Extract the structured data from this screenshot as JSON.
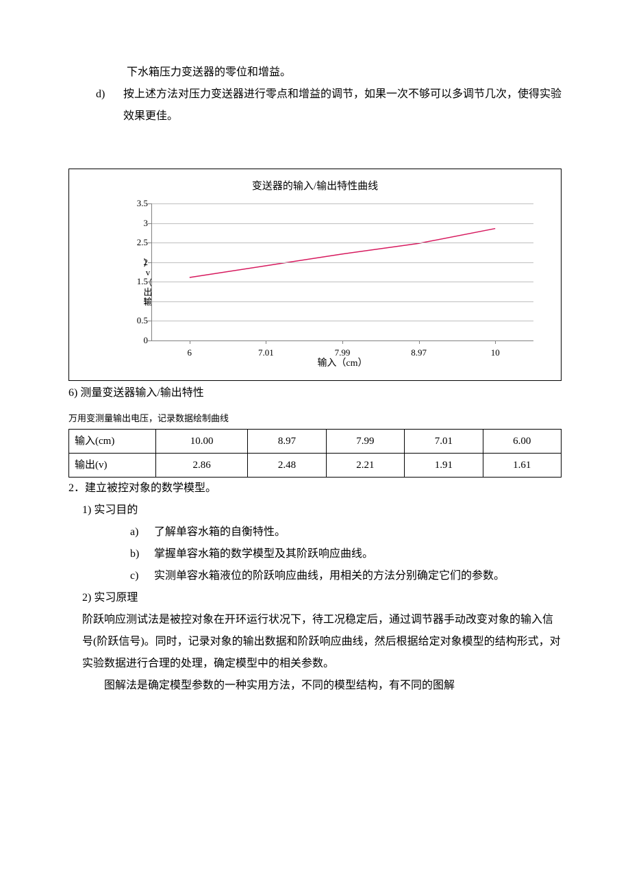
{
  "top": {
    "cont_line": "下水箱压力变送器的零位和增益。",
    "item_d_marker": "d)",
    "item_d_text": "按上述方法对压力变送器进行零点和增益的调节，如果一次不够可以多调节几次，使得实验效果更佳。"
  },
  "chart": {
    "title": "变送器的输入/输出特性曲线",
    "ylabel_chars": [
      "）",
      "v",
      "（",
      "出",
      "输"
    ],
    "xlabel": "输入（cm）",
    "ylim": [
      0,
      3.5
    ],
    "ytick_step": 0.5,
    "yticks": [
      "0",
      "0.5",
      "1",
      "1.5",
      "2",
      "2.5",
      "3",
      "3.5"
    ],
    "xticks": [
      "6",
      "7.01",
      "7.99",
      "8.97",
      "10"
    ],
    "grid_color": "#bfbfbf",
    "axis_color": "#808080",
    "line_color": "#d6185d",
    "background_color": "#ffffff",
    "points": [
      {
        "x_idx": 0,
        "y": 1.61
      },
      {
        "x_idx": 1,
        "y": 1.91
      },
      {
        "x_idx": 2,
        "y": 2.21
      },
      {
        "x_idx": 3,
        "y": 2.48
      },
      {
        "x_idx": 4,
        "y": 2.86
      }
    ]
  },
  "after_chart": {
    "heading": "6) 测量变送器输入/输出特性",
    "caption": "万用变测量输出电压，记录数据绘制曲线",
    "row1_label": "输入(cm)",
    "row2_label": "输出(v)",
    "row1": [
      "10.00",
      "8.97",
      "7.99",
      "7.01",
      "6.00"
    ],
    "row2": [
      "2.86",
      "2.48",
      "2.21",
      "1.91",
      "1.61"
    ]
  },
  "sec2": {
    "title": "2．建立被控对象的数学模型。",
    "s1": "1) 实习目的",
    "a_m": "a)",
    "a": "了解单容水箱的自衡特性。",
    "b_m": "b)",
    "b": "掌握单容水箱的数学模型及其阶跃响应曲线。",
    "c_m": "c)",
    "c": "实测单容水箱液位的阶跃响应曲线，用相关的方法分别确定它们的参数。",
    "s2": "2) 实习原理",
    "p1": "阶跃响应测试法是被控对象在开环运行状况下，待工况稳定后，通过调节器手动改变对象的输入信号(阶跃信号)。同时，记录对象的输出数据和阶跃响应曲线，然后根据给定对象模型的结构形式，对实验数据进行合理的处理，确定模型中的相关参数。",
    "p2": "图解法是确定模型参数的一种实用方法，不同的模型结构，有不同的图解"
  }
}
